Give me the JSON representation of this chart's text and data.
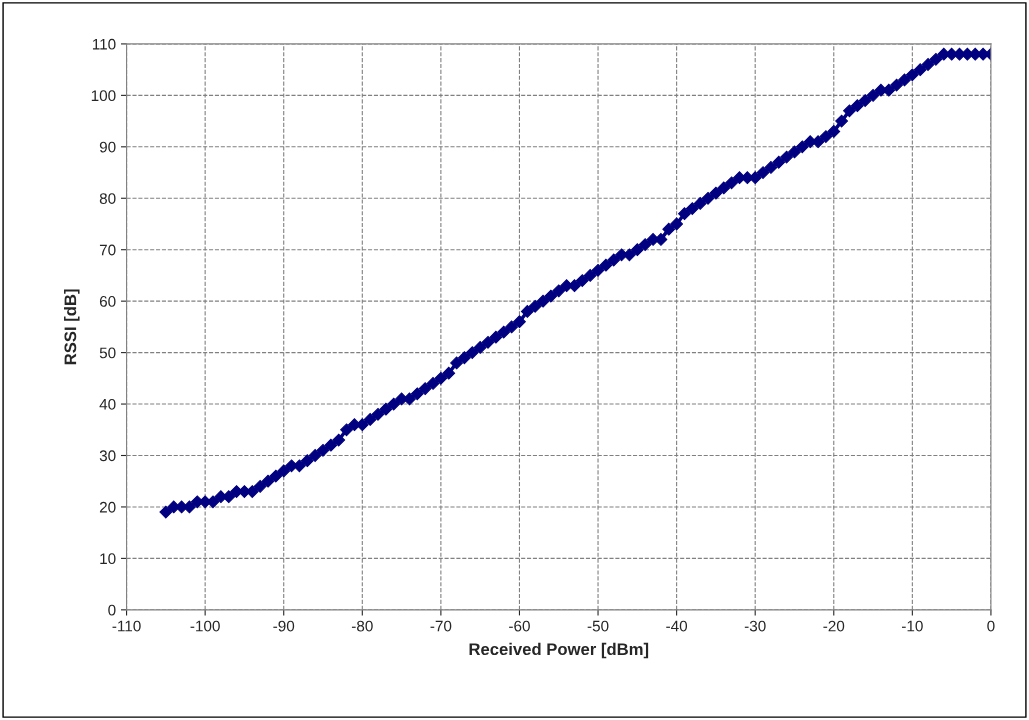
{
  "chart_data": {
    "type": "line",
    "xlabel": "Received Power [dBm]",
    "ylabel": "RSSI [dB]",
    "x": [
      -105,
      -104,
      -103,
      -102,
      -101,
      -100,
      -99,
      -98,
      -97,
      -96,
      -95,
      -94,
      -93,
      -92,
      -91,
      -90,
      -89,
      -88,
      -87,
      -86,
      -85,
      -84,
      -83,
      -82,
      -81,
      -80,
      -79,
      -78,
      -77,
      -76,
      -75,
      -74,
      -73,
      -72,
      -71,
      -70,
      -69,
      -68,
      -67,
      -66,
      -65,
      -64,
      -63,
      -62,
      -61,
      -60,
      -59,
      -58,
      -57,
      -56,
      -55,
      -54,
      -53,
      -52,
      -51,
      -50,
      -49,
      -48,
      -47,
      -46,
      -45,
      -44,
      -43,
      -42,
      -41,
      -40,
      -39,
      -38,
      -37,
      -36,
      -35,
      -34,
      -33,
      -32,
      -31,
      -30,
      -29,
      -28,
      -27,
      -26,
      -25,
      -24,
      -23,
      -22,
      -21,
      -20,
      -19,
      -18,
      -17,
      -16,
      -15,
      -14,
      -13,
      -12,
      -11,
      -10,
      -9,
      -8,
      -7,
      -6,
      -5,
      -4,
      -3,
      -2,
      -1,
      0
    ],
    "series": [
      {
        "color": "#000080",
        "values": [
          19,
          20,
          20,
          20,
          21,
          21,
          21,
          22,
          22,
          23,
          23,
          23,
          24,
          25,
          26,
          27,
          28,
          28,
          29,
          30,
          31,
          32,
          33,
          35,
          36,
          36,
          37,
          38,
          39,
          40,
          41,
          41,
          42,
          43,
          44,
          45,
          46,
          48,
          49,
          50,
          51,
          52,
          53,
          54,
          55,
          56,
          58,
          59,
          60,
          61,
          62,
          63,
          63,
          64,
          65,
          66,
          67,
          68,
          69,
          69,
          70,
          71,
          72,
          72,
          74,
          75,
          77,
          78,
          79,
          80,
          81,
          82,
          83,
          84,
          84,
          84,
          85,
          86,
          87,
          88,
          89,
          90,
          91,
          91,
          92,
          93,
          95,
          97,
          98,
          99,
          100,
          101,
          101,
          102,
          103,
          104,
          105,
          106,
          107,
          108,
          108,
          108,
          108,
          108,
          108,
          108
        ]
      }
    ],
    "xlim": [
      -110,
      0
    ],
    "xticks": [
      -110,
      -100,
      -90,
      -80,
      -70,
      -60,
      -50,
      -40,
      -30,
      -20,
      -10,
      0
    ],
    "ylim": [
      0,
      110
    ],
    "yticks": [
      0,
      10,
      20,
      30,
      40,
      50,
      60,
      70,
      80,
      90,
      100,
      110
    ],
    "grid": true,
    "marker": "diamond",
    "line_style": "solid",
    "legend": false
  }
}
